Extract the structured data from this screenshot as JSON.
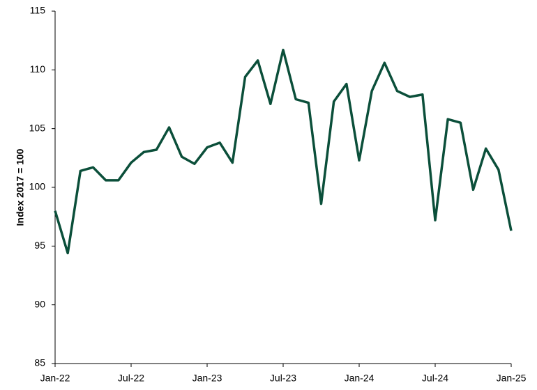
{
  "chart_data": {
    "type": "line",
    "y_label": "Index 2017 = 100",
    "categories": [
      "Jan-22",
      null,
      null,
      null,
      null,
      null,
      "Jul-22",
      null,
      null,
      null,
      null,
      null,
      "Jan-23",
      null,
      null,
      null,
      null,
      null,
      "Jul-23",
      null,
      null,
      null,
      null,
      null,
      "Jan-24",
      null,
      null,
      null,
      null,
      null,
      "Jul-24",
      null,
      null,
      null,
      null,
      null,
      "Jan-25"
    ],
    "series": [
      {
        "color": "#0b4f3a",
        "values": [
          98.0,
          94.4,
          101.4,
          101.7,
          100.6,
          100.6,
          102.1,
          103.0,
          103.2,
          105.1,
          102.6,
          102.0,
          103.4,
          103.8,
          102.1,
          109.4,
          110.8,
          107.1,
          111.7,
          107.5,
          107.2,
          98.6,
          107.3,
          108.8,
          102.3,
          108.2,
          110.6,
          108.2,
          107.7,
          107.9,
          97.2,
          105.8,
          105.5,
          99.8,
          103.3,
          101.5,
          96.3
        ]
      }
    ],
    "ylim": [
      85,
      115
    ],
    "yticks": [
      85,
      90,
      95,
      100,
      105,
      110,
      115
    ],
    "grid": false
  }
}
